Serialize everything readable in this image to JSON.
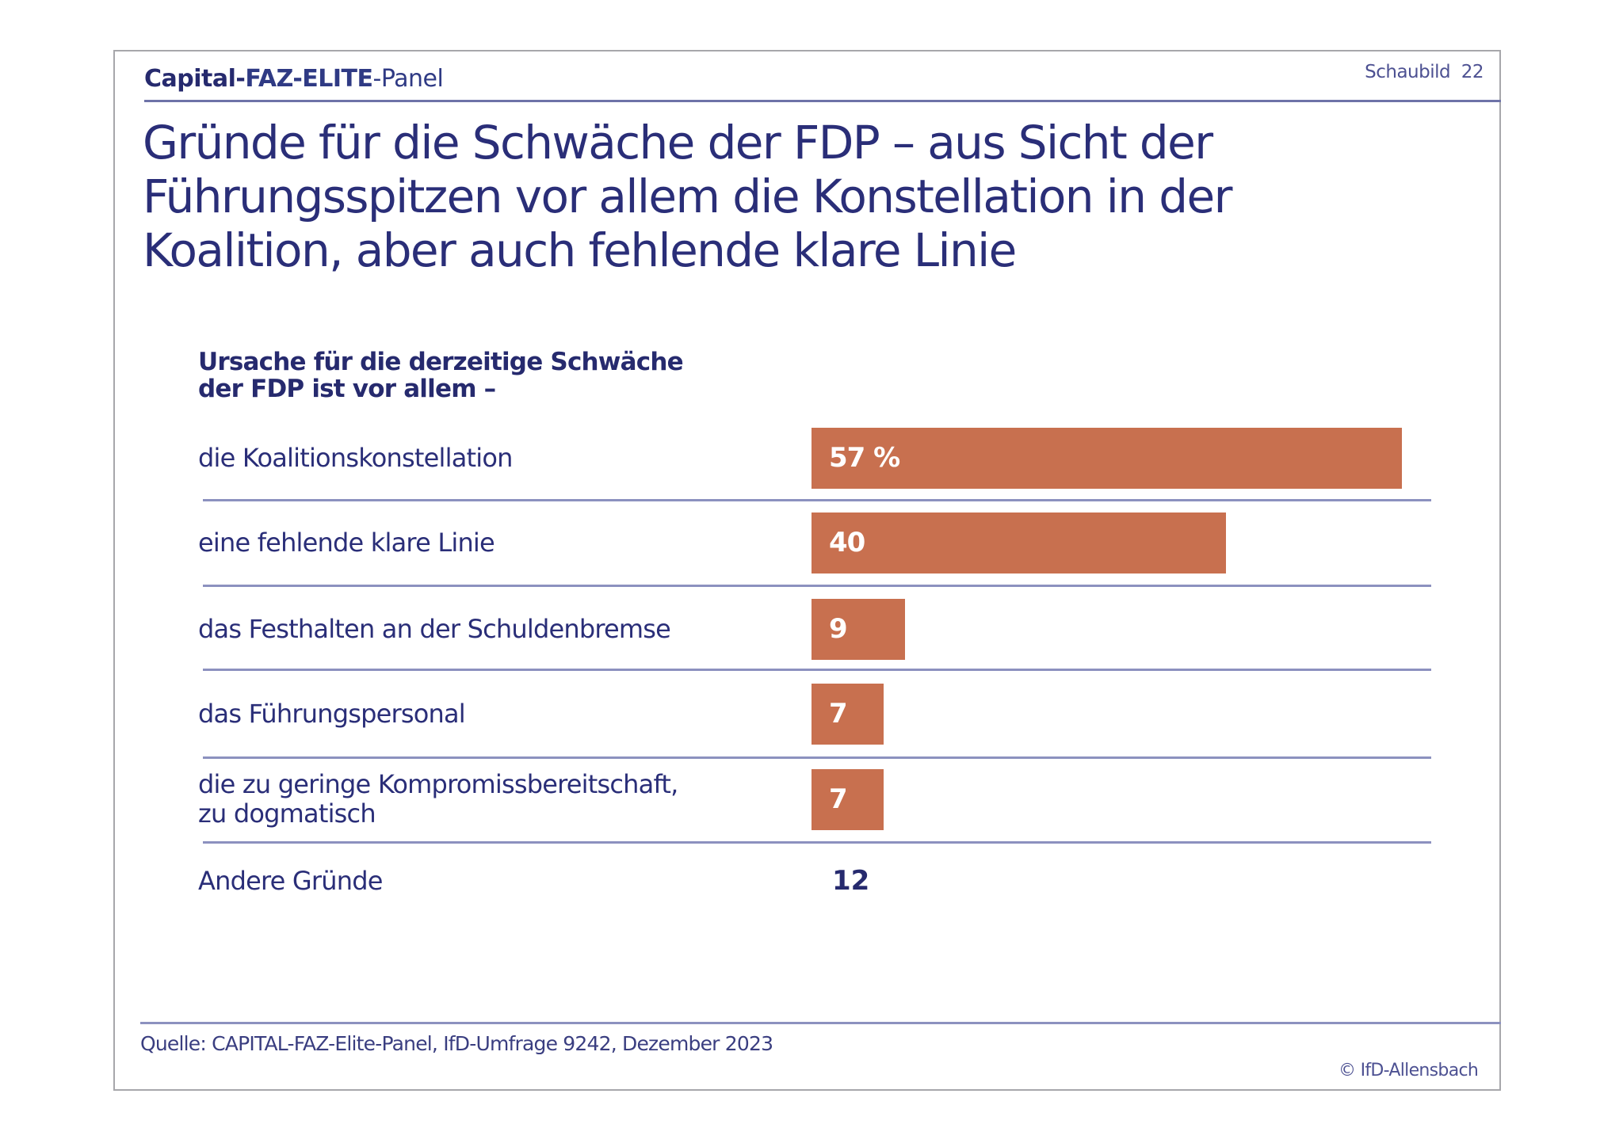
{
  "header": {
    "brand_part1": "Capital-",
    "brand_part2": "FAZ-ELITE",
    "brand_part3": "-Panel",
    "figure_label": "Schaubild  22"
  },
  "title_lines": [
    "Gründe für die Schwäche der FDP – aus Sicht der",
    "Führungsspitzen vor allem die Konstellation in der",
    "Koalition, aber auch fehlende klare Linie"
  ],
  "colors": {
    "text": "#2a2e78",
    "bar": "#c8704f",
    "separator": "#8c91bf"
  },
  "chart_data": {
    "type": "bar",
    "orientation": "horizontal",
    "title": "Gründe für die Schwäche der FDP – aus Sicht der Führungsspitzen vor allem die Konstellation in der Koalition, aber auch fehlende klare Linie",
    "subtitle_lines": [
      "Ursache für die derzeitige Schwäche",
      "der FDP ist vor allem –"
    ],
    "unit": "%",
    "categories": [
      "die Koalitionskonstellation",
      "eine fehlende klare Linie",
      "das Festhalten an der Schuldenbremse",
      "das Führungspersonal",
      "die zu geringe Kompromissbereitschaft, zu dogmatisch",
      "Andere Gründe"
    ],
    "rows": [
      {
        "label_lines": [
          "die Koalitionskonstellation"
        ],
        "value": 57,
        "display": "57 %",
        "bar": true
      },
      {
        "label_lines": [
          "eine fehlende klare Linie"
        ],
        "value": 40,
        "display": "40",
        "bar": true
      },
      {
        "label_lines": [
          "das Festhalten an der Schuldenbremse"
        ],
        "value": 9,
        "display": "9",
        "bar": true
      },
      {
        "label_lines": [
          "das Führungspersonal"
        ],
        "value": 7,
        "display": "7",
        "bar": true
      },
      {
        "label_lines": [
          "die zu geringe Kompromissbereitschaft,",
          "zu dogmatisch"
        ],
        "value": 7,
        "display": "7",
        "bar": true
      },
      {
        "label_lines": [
          "Andere Gründe"
        ],
        "value": 12,
        "display": "12",
        "bar": false
      }
    ],
    "values": [
      57,
      40,
      9,
      7,
      7,
      12
    ],
    "xlim": [
      0,
      57
    ],
    "grid": false,
    "legend": "none"
  },
  "footer": {
    "source": "Quelle: CAPITAL-FAZ-Elite-Panel, IfD-Umfrage 9242, Dezember 2023",
    "copyright": "© IfD-Allensbach"
  }
}
